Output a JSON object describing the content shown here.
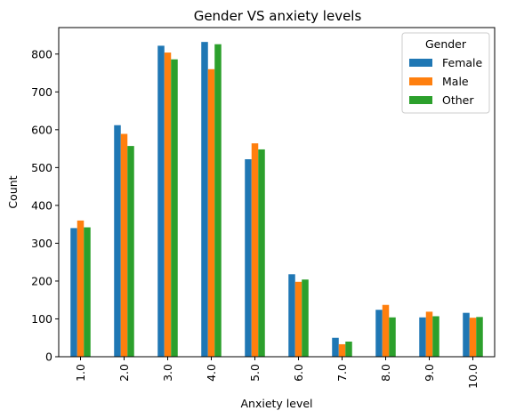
{
  "chart_data": {
    "type": "bar",
    "title": "Gender VS anxiety levels",
    "xlabel": "Anxiety level",
    "ylabel": "Count",
    "categories": [
      "1.0",
      "2.0",
      "3.0",
      "4.0",
      "5.0",
      "6.0",
      "7.0",
      "8.0",
      "9.0",
      "10.0"
    ],
    "ylim": [
      0,
      870
    ],
    "yticks": [
      0,
      100,
      200,
      300,
      400,
      500,
      600,
      700,
      800
    ],
    "grid": false,
    "legend": {
      "title": "Gender",
      "position": "top-right"
    },
    "series": [
      {
        "name": "Female",
        "color": "#1f77b4",
        "values": [
          340,
          612,
          822,
          832,
          522,
          218,
          50,
          124,
          104,
          116
        ]
      },
      {
        "name": "Male",
        "color": "#ff7f0e",
        "values": [
          360,
          589,
          804,
          760,
          564,
          198,
          33,
          137,
          119,
          103
        ]
      },
      {
        "name": "Other",
        "color": "#2ca02c",
        "values": [
          342,
          557,
          786,
          826,
          548,
          204,
          40,
          104,
          107,
          105
        ]
      }
    ]
  }
}
